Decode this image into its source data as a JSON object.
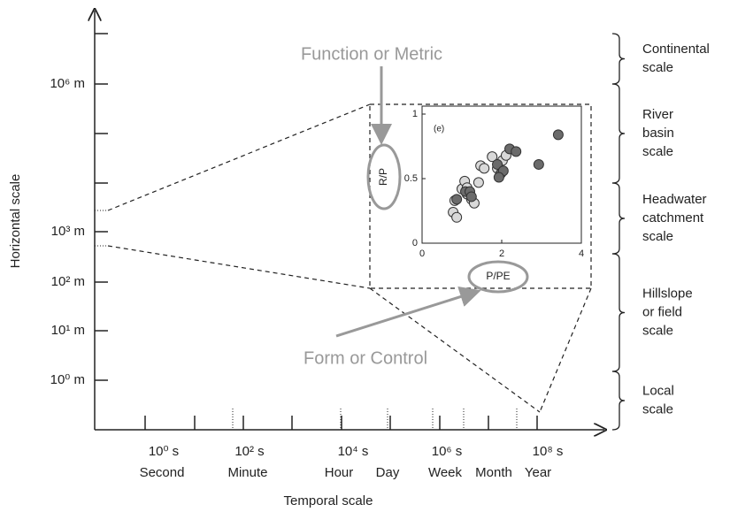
{
  "y_axis": {
    "title": "Horizontal scale",
    "ticks": [
      "10⁶ m",
      "10³ m",
      "10² m",
      "10¹ m",
      "10⁰ m"
    ]
  },
  "x_axis": {
    "title": "Temporal scale",
    "ticks": [
      "10⁰ s",
      "10² s",
      "10⁴ s",
      "10⁶ s",
      "10⁸ s"
    ],
    "units": [
      "Second",
      "Minute",
      "Hour",
      "Day",
      "Week",
      "Month",
      "Year"
    ]
  },
  "annotations": {
    "function": "Function or Metric",
    "form": "Form or Control"
  },
  "scales": [
    [
      "Continental",
      "scale"
    ],
    [
      "River",
      "basin",
      "scale"
    ],
    [
      "Headwater",
      "catchment",
      "scale"
    ],
    [
      "Hillslope",
      "or field",
      "scale"
    ],
    [
      "Local",
      "scale"
    ]
  ],
  "chart_data": {
    "type": "scatter",
    "annotation": "(e)",
    "x_label": "P/PE",
    "y_label": "R/P",
    "xlim": [
      0,
      4
    ],
    "ylim": [
      0,
      1
    ],
    "xticks": [
      0,
      2,
      4
    ],
    "yticks": [
      0,
      0.5,
      1
    ],
    "series": [
      {
        "color": "#d9d9d9",
        "x": [
          0.78,
          0.87,
          0.82,
          1.0,
          1.07,
          1.13,
          1.24,
          1.31,
          1.42,
          1.47,
          1.56,
          1.76,
          1.89,
          2.02,
          2.11,
          1.13
        ],
        "values": [
          0.24,
          0.2,
          0.33,
          0.42,
          0.48,
          0.43,
          0.34,
          0.31,
          0.47,
          0.6,
          0.58,
          0.67,
          0.58,
          0.64,
          0.68,
          0.38
        ]
      },
      {
        "color": "#6b6b6b",
        "x": [
          0.87,
          1.09,
          1.2,
          1.24,
          1.89,
          1.98,
          2.04,
          2.2,
          2.36,
          1.93,
          2.93,
          3.42
        ],
        "values": [
          0.34,
          0.4,
          0.4,
          0.36,
          0.61,
          0.54,
          0.56,
          0.73,
          0.71,
          0.51,
          0.61,
          0.84
        ]
      }
    ]
  }
}
